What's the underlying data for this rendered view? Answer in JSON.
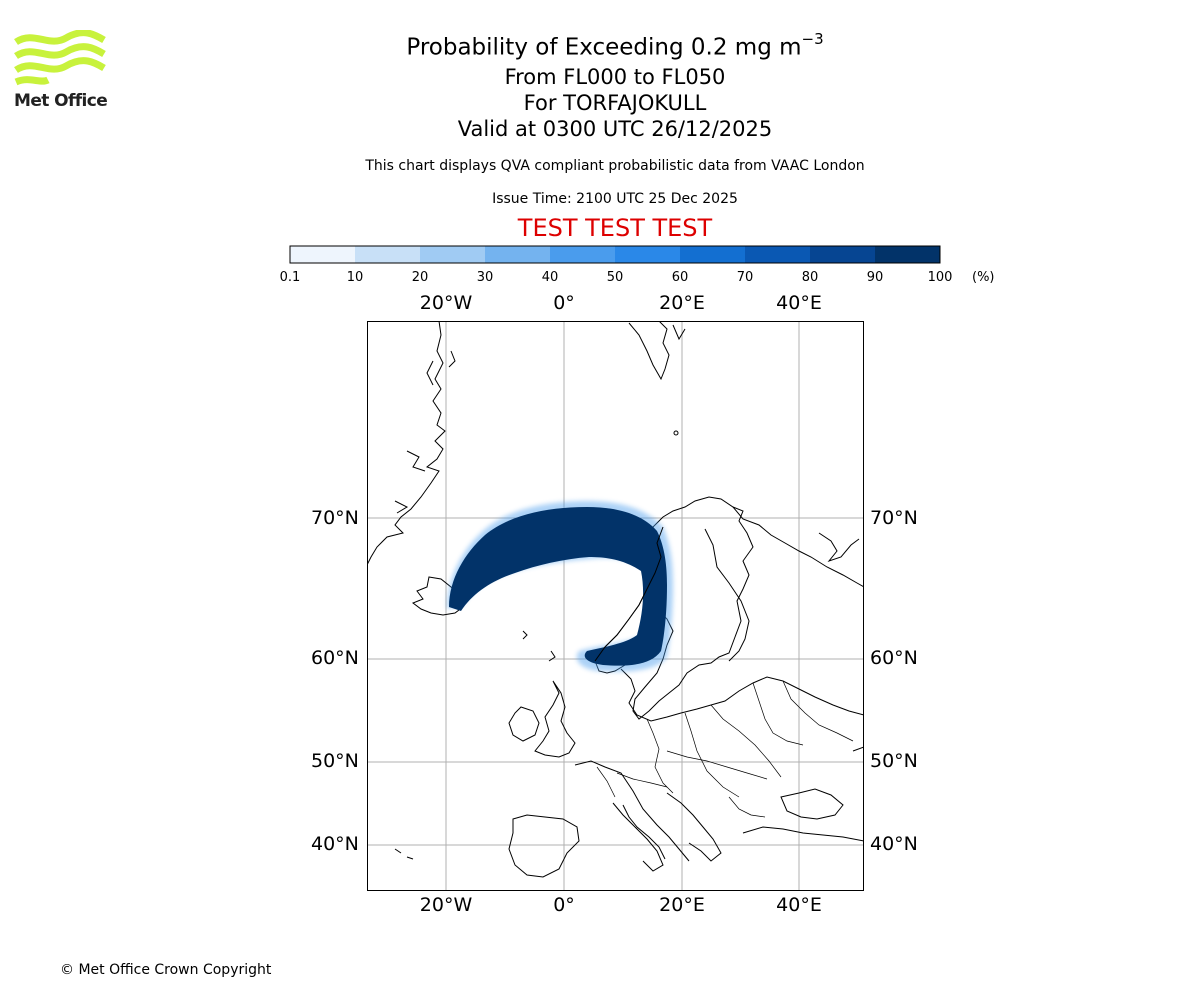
{
  "logo": {
    "text": "Met Office",
    "color": "#c8f23c"
  },
  "header": {
    "title_prefix": "Probability of Exceeding 0.2 mg m",
    "title_exponent": "−3",
    "level_range": "From FL000 to FL050",
    "volcano": "For TORFAJOKULL",
    "valid": "Valid at 0300 UTC 26/12/2025",
    "description": "This chart displays QVA compliant probabilistic data from VAAC London",
    "issue_time": "Issue Time: 2100 UTC 25 Dec 2025",
    "test_banner": "TEST TEST TEST",
    "test_color": "#dd0000"
  },
  "colorbar": {
    "ticks": [
      "0.1",
      "10",
      "20",
      "30",
      "40",
      "50",
      "60",
      "70",
      "80",
      "90",
      "100"
    ],
    "unit": "(%)",
    "colors": [
      "#eef5fd",
      "#c8e0f7",
      "#a0cbf3",
      "#74b3ef",
      "#4a9ced",
      "#2a88e8",
      "#136fd1",
      "#0a58b3",
      "#064592",
      "#023369"
    ]
  },
  "map": {
    "lon_labels": [
      "20°W",
      "0°",
      "20°E",
      "40°E"
    ],
    "lat_labels": [
      "70°N",
      "60°N",
      "50°N",
      "40°N"
    ],
    "plume_color": "#023369"
  },
  "footer": {
    "copyright": "© Met Office Crown Copyright"
  }
}
